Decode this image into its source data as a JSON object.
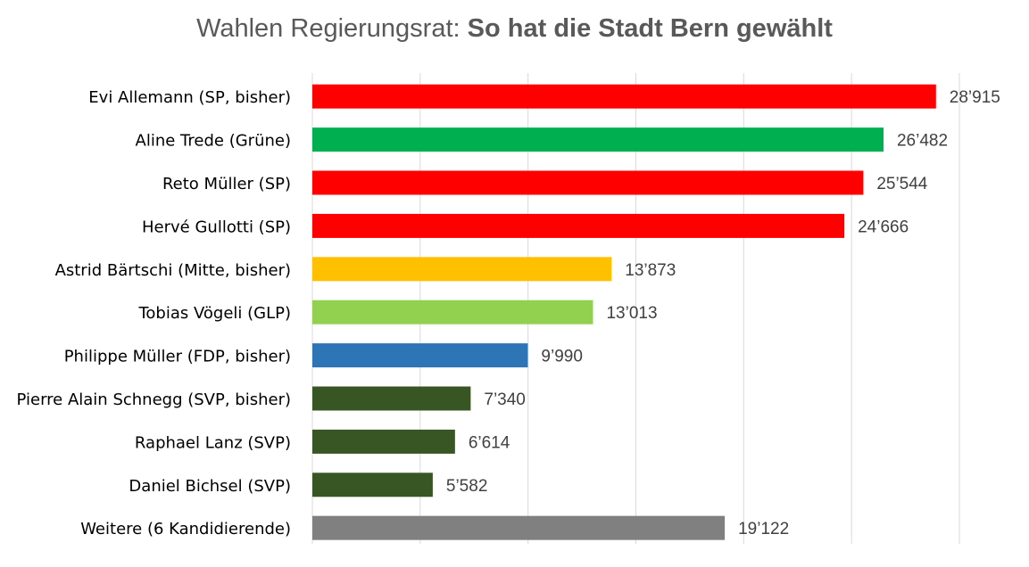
{
  "chart_data": {
    "type": "bar",
    "orientation": "horizontal",
    "title_regular": "Wahlen Regierungsrat: ",
    "title_bold": "So hat die Stadt Bern gewählt",
    "categories": [
      "Evi Allemann (SP, bisher)",
      "Aline Trede (Grüne)",
      "Reto Müller  (SP)",
      "Hervé Gullotti (SP)",
      "Astrid Bärtschi (Mitte, bisher)",
      "Tobias Vögeli (GLP)",
      "Philippe Müller (FDP, bisher)",
      "Pierre Alain Schnegg (SVP, bisher)",
      "Raphael Lanz (SVP)",
      "Daniel Bichsel (SVP)",
      "Weitere (6 Kandidierende)"
    ],
    "values": [
      28915,
      26482,
      25544,
      24666,
      13873,
      13013,
      9990,
      7340,
      6614,
      5582,
      19122
    ],
    "value_labels": [
      "28’915",
      "26’482",
      "25’544",
      "24’666",
      "13’873",
      "13’013",
      "9’990",
      "7’340",
      "6’614",
      "5’582",
      "19’122"
    ],
    "colors": [
      "#ff0000",
      "#00b050",
      "#ff0000",
      "#ff0000",
      "#ffc000",
      "#92d050",
      "#2e75b6",
      "#375623",
      "#375623",
      "#375623",
      "#808080"
    ],
    "xlim": [
      0,
      30000
    ],
    "x_gridline_step": 5000,
    "grid": true,
    "xlabel": "",
    "ylabel": ""
  }
}
